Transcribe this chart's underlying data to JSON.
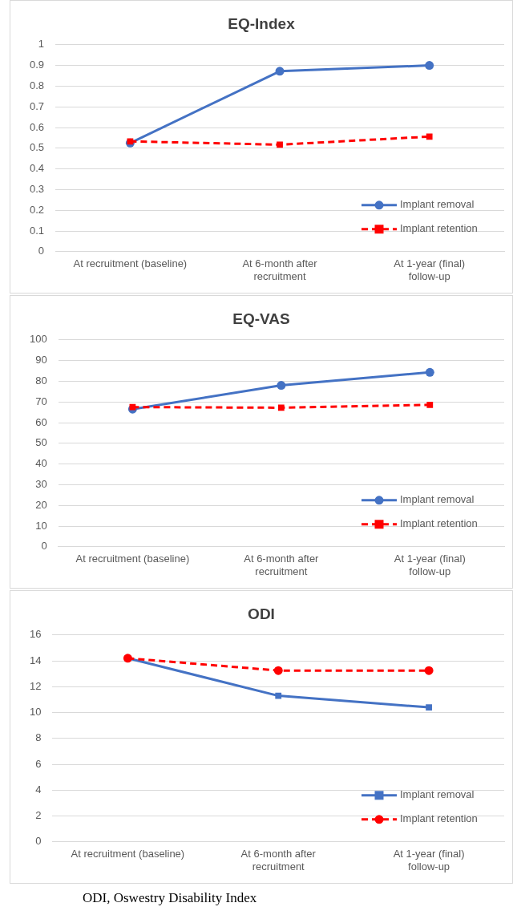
{
  "chart_data": [
    {
      "type": "line",
      "title": "EQ-Index",
      "categories": [
        "At recruitment (baseline)",
        "At 6-month after recruitment",
        "At 1-year (final) follow-up"
      ],
      "ylim": [
        0,
        1
      ],
      "yticks": [
        0,
        0.1,
        0.2,
        0.3,
        0.4,
        0.5,
        0.6,
        0.7,
        0.8,
        0.9,
        1
      ],
      "grid": "y",
      "legend": "bottom right",
      "series": [
        {
          "name": "Implant removal",
          "color": "#4472c4",
          "values": [
            0.525,
            0.872,
            0.9
          ],
          "marker": "circle",
          "line_style": "solid"
        },
        {
          "name": "Implant retention",
          "color": "#ff0000",
          "values": [
            0.533,
            0.517,
            0.556
          ],
          "marker": "square",
          "line_style": "dashed"
        }
      ]
    },
    {
      "type": "line",
      "title": "EQ-VAS",
      "categories": [
        "At recruitment (baseline)",
        "At 6-month after recruitment",
        "At 1-year (final) follow-up"
      ],
      "ylim": [
        0,
        100
      ],
      "yticks": [
        0,
        10,
        20,
        30,
        40,
        50,
        60,
        70,
        80,
        90,
        100
      ],
      "grid": "y",
      "legend": "bottom right",
      "series": [
        {
          "name": "Implant removal",
          "color": "#4472c4",
          "values": [
            66.5,
            78,
            84.3
          ],
          "marker": "circle",
          "line_style": "solid"
        },
        {
          "name": "Implant retention",
          "color": "#ff0000",
          "values": [
            67.5,
            67.2,
            68.6
          ],
          "marker": "square",
          "line_style": "dashed"
        }
      ]
    },
    {
      "type": "line",
      "title": "ODI",
      "categories": [
        "At recruitment (baseline)",
        "At 6-month after recruitment",
        "At 1-year (final) follow-up"
      ],
      "ylim": [
        0,
        16
      ],
      "yticks": [
        0,
        2,
        4,
        6,
        8,
        10,
        12,
        14,
        16
      ],
      "grid": "y",
      "legend": "bottom right",
      "annotations": [
        "ODI, Oswestry Disability Index"
      ],
      "series": [
        {
          "name": "Implant removal",
          "color": "#4472c4",
          "values": [
            14.2,
            11.3,
            10.4
          ],
          "marker": "square",
          "line_style": "solid"
        },
        {
          "name": "Implant retention",
          "color": "#ff0000",
          "values": [
            14.2,
            13.25,
            13.25
          ],
          "marker": "circle",
          "line_style": "dashed"
        }
      ]
    }
  ]
}
